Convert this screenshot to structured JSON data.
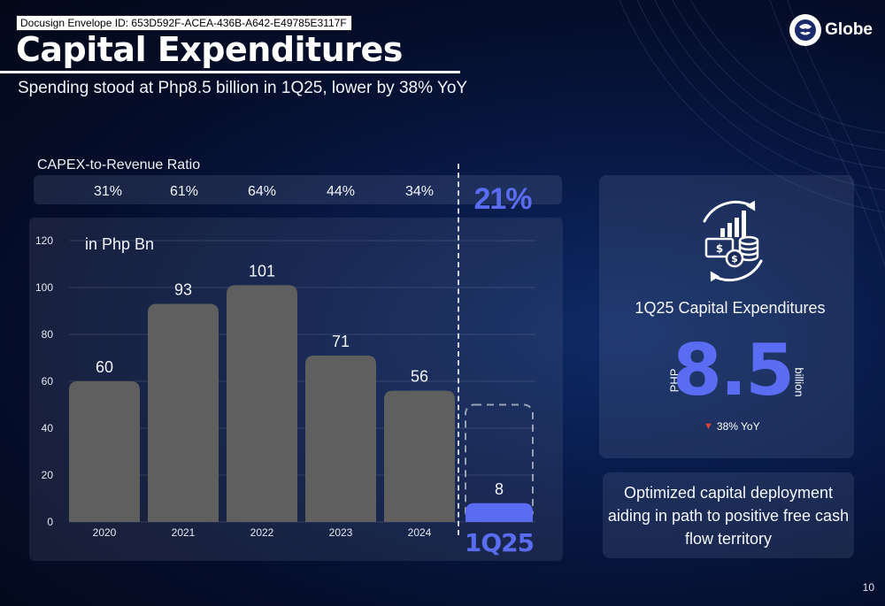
{
  "envelope_id": "Docusign Envelope ID: 653D592F-ACEA-436B-A642-E49785E3117F",
  "title": "Capital Expenditures",
  "subtitle": "Spending stood at Php8.5 billion in 1Q25, lower by 38% YoY",
  "logo_text": "Globe",
  "ratio": {
    "label": "CAPEX-to-Revenue Ratio",
    "values": [
      "31%",
      "61%",
      "64%",
      "44%",
      "34%"
    ],
    "highlight": "21%"
  },
  "chart_data": {
    "type": "bar",
    "title": "",
    "unit_label": "in Php Bn",
    "categories": [
      "2020",
      "2021",
      "2022",
      "2023",
      "2024",
      "1Q25"
    ],
    "values": [
      60,
      93,
      101,
      71,
      56,
      8
    ],
    "ylim": [
      0,
      120
    ],
    "yticks": [
      0,
      20,
      40,
      60,
      80,
      100,
      120
    ],
    "grid": true,
    "bar_color": "#5f5f5f",
    "highlight_color": "#5a6cf2"
  },
  "highlight_card": {
    "title": "1Q25 Capital Expenditures",
    "currency": "PHP",
    "value": "8.5",
    "unit": "billion",
    "yoy": "38% YoY",
    "yoy_direction": "down"
  },
  "note": "Optimized capital deployment aiding in path to positive free cash flow territory",
  "page_number": "10",
  "colors": {
    "accent": "#5a6cf2",
    "down": "#e0403a"
  }
}
